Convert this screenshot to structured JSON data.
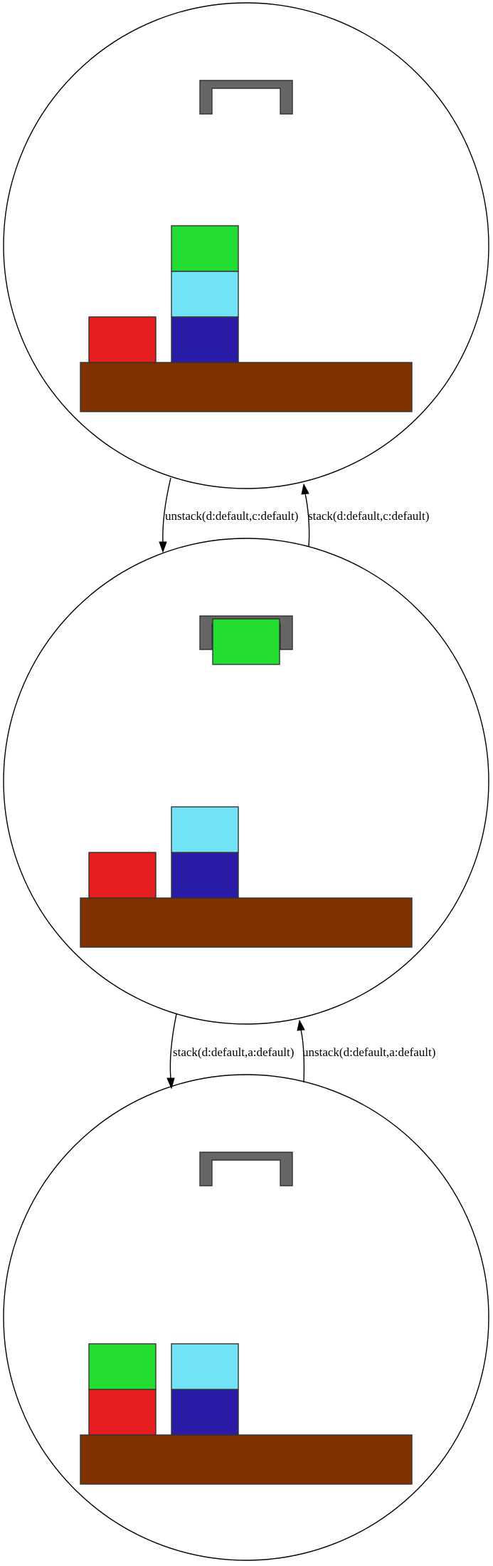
{
  "colors": {
    "red": "#e51c20",
    "green": "#24dd33",
    "cyan": "#70e4f6",
    "navy": "#2b1ca8",
    "table": "#7d3200",
    "gripper": "#666666"
  },
  "states": [
    {
      "gripper_holding": "none",
      "stacks": [
        [
          "red"
        ],
        [
          "navy",
          "cyan",
          "green"
        ]
      ]
    },
    {
      "gripper_holding": "green",
      "stacks": [
        [
          "red"
        ],
        [
          "navy",
          "cyan"
        ]
      ]
    },
    {
      "gripper_holding": "none",
      "stacks": [
        [
          "red",
          "green"
        ],
        [
          "navy",
          "cyan"
        ]
      ]
    }
  ],
  "edges": [
    {
      "from": 0,
      "to": 1,
      "label": "unstack(d:default,c:default)"
    },
    {
      "from": 1,
      "to": 0,
      "label": "stack(d:default,c:default)"
    },
    {
      "from": 1,
      "to": 2,
      "label": "stack(d:default,a:default)"
    },
    {
      "from": 2,
      "to": 1,
      "label": "unstack(d:default,a:default)"
    }
  ]
}
